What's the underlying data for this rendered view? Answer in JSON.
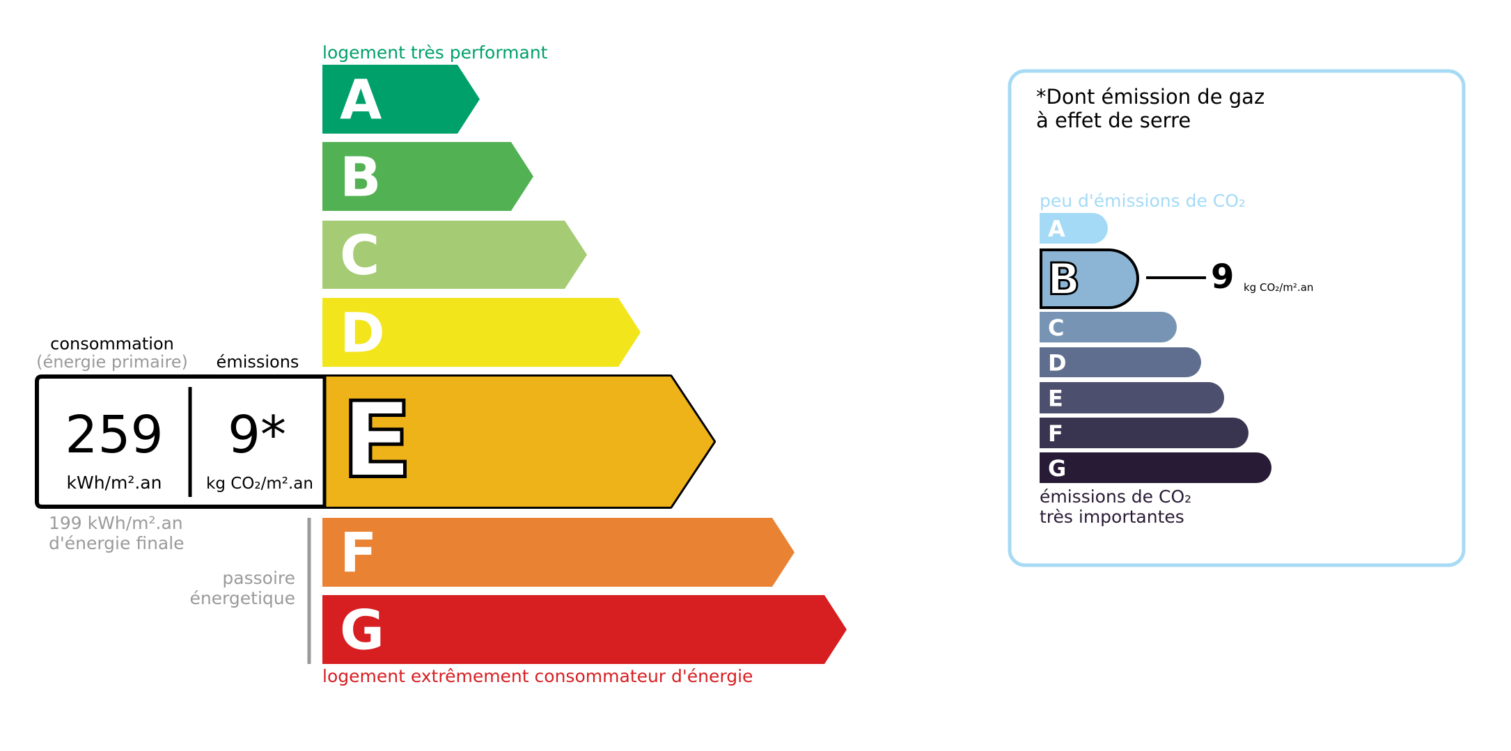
{
  "energy": {
    "top_label": "logement très performant",
    "bottom_label": "logement extrêmement consommateur d'énergie",
    "top_label_color": "#00a06b",
    "bottom_label_color": "#d71e21",
    "classes": [
      {
        "letter": "A",
        "color": "#00a06b"
      },
      {
        "letter": "B",
        "color": "#52b153"
      },
      {
        "letter": "C",
        "color": "#a5cc74"
      },
      {
        "letter": "D",
        "color": "#f2e51b"
      },
      {
        "letter": "E",
        "color": "#efb31a"
      },
      {
        "letter": "F",
        "color": "#ea8233"
      },
      {
        "letter": "G",
        "color": "#d71e21"
      }
    ],
    "current_class": "E",
    "consumption_label": "consommation",
    "consumption_sublabel": "(énergie primaire)",
    "emissions_label": "émissions",
    "consumption_value": "259",
    "consumption_unit": "kWh/m².an",
    "emissions_value": "9*",
    "emissions_unit": "kg CO₂/m².an",
    "final_energy_value": "199 kWh/m².an",
    "final_energy_label": "d'énergie finale",
    "passoire_line1": "passoire",
    "passoire_line2": "énergetique"
  },
  "ges": {
    "title_line1": "*Dont émission de gaz",
    "title_line2": "à effet de serre",
    "top_label": "peu d'émissions de CO₂",
    "bottom_label_line1": "émissions de CO₂",
    "bottom_label_line2": "très importantes",
    "border_color": "#a6daf5",
    "classes": [
      {
        "letter": "A",
        "color": "#a4daf6"
      },
      {
        "letter": "B",
        "color": "#8cb5d5"
      },
      {
        "letter": "C",
        "color": "#7894b4"
      },
      {
        "letter": "D",
        "color": "#5f6e8e"
      },
      {
        "letter": "E",
        "color": "#4d4f6f"
      },
      {
        "letter": "F",
        "color": "#393551"
      },
      {
        "letter": "G",
        "color": "#281b35"
      }
    ],
    "current_class": "B",
    "value": "9",
    "unit": "kg CO₂/m².an"
  }
}
